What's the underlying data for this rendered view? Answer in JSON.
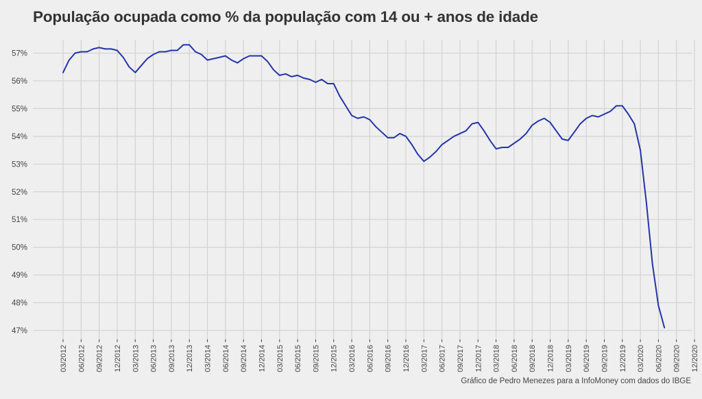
{
  "title": "População ocupada como % da população com 14 ou + anos de idade",
  "caption": "Gráfico de Pedro Menezes para a InfoMoney com dados do IBGE",
  "chart_data": {
    "type": "line",
    "title": "População ocupada como % da população com 14 ou + anos de idade",
    "xlabel": "",
    "ylabel": "",
    "ylim": [
      46.8,
      57.5
    ],
    "grid": true,
    "y_ticks": [
      47,
      48,
      49,
      50,
      51,
      52,
      53,
      54,
      55,
      56,
      57
    ],
    "y_tick_labels": [
      "47%",
      "48%",
      "49%",
      "50%",
      "51%",
      "52%",
      "53%",
      "54%",
      "55%",
      "56%",
      "57%"
    ],
    "x_ticks": [
      "03/2012",
      "06/2012",
      "09/2012",
      "12/2012",
      "03/2013",
      "06/2013",
      "09/2013",
      "12/2013",
      "03/2014",
      "06/2014",
      "09/2014",
      "12/2014",
      "03/2015",
      "06/2015",
      "09/2015",
      "12/2015",
      "03/2016",
      "06/2016",
      "09/2016",
      "12/2016",
      "03/2017",
      "06/2017",
      "09/2017",
      "12/2017",
      "03/2018",
      "06/2018",
      "09/2018",
      "12/2018",
      "03/2019",
      "06/2019",
      "09/2019",
      "12/2019",
      "03/2020",
      "06/2020",
      "09/2020",
      "12/2020"
    ],
    "line_color": "#2233aa",
    "series": [
      {
        "x": [
          "03/2012",
          "04/2012",
          "05/2012",
          "06/2012",
          "07/2012",
          "08/2012",
          "09/2012",
          "10/2012",
          "11/2012",
          "12/2012",
          "01/2013",
          "02/2013",
          "03/2013",
          "04/2013",
          "05/2013",
          "06/2013",
          "07/2013",
          "08/2013",
          "09/2013",
          "10/2013",
          "11/2013",
          "12/2013",
          "01/2014",
          "02/2014",
          "03/2014",
          "04/2014",
          "05/2014",
          "06/2014",
          "07/2014",
          "08/2014",
          "09/2014",
          "10/2014",
          "11/2014",
          "12/2014",
          "01/2015",
          "02/2015",
          "03/2015",
          "04/2015",
          "05/2015",
          "06/2015",
          "07/2015",
          "08/2015",
          "09/2015",
          "10/2015",
          "11/2015",
          "12/2015",
          "01/2016",
          "02/2016",
          "03/2016",
          "04/2016",
          "05/2016",
          "06/2016",
          "07/2016",
          "08/2016",
          "09/2016",
          "10/2016",
          "11/2016",
          "12/2016",
          "01/2017",
          "02/2017",
          "03/2017",
          "04/2017",
          "05/2017",
          "06/2017",
          "07/2017",
          "08/2017",
          "09/2017",
          "10/2017",
          "11/2017",
          "12/2017",
          "01/2018",
          "02/2018",
          "03/2018",
          "04/2018",
          "05/2018",
          "06/2018",
          "07/2018",
          "08/2018",
          "09/2018",
          "10/2018",
          "11/2018",
          "12/2018",
          "01/2019",
          "02/2019",
          "03/2019",
          "04/2019",
          "05/2019",
          "06/2019",
          "07/2019",
          "08/2019",
          "09/2019",
          "10/2019",
          "11/2019",
          "12/2019",
          "01/2020",
          "02/2020",
          "03/2020",
          "04/2020",
          "05/2020",
          "06/2020",
          "07/2020"
        ],
        "values": [
          56.3,
          56.75,
          57.0,
          57.05,
          57.05,
          57.15,
          57.2,
          57.15,
          57.15,
          57.1,
          56.85,
          56.5,
          56.3,
          56.55,
          56.8,
          56.95,
          57.05,
          57.05,
          57.1,
          57.1,
          57.3,
          57.3,
          57.05,
          56.95,
          56.75,
          56.8,
          56.85,
          56.9,
          56.75,
          56.65,
          56.8,
          56.9,
          56.9,
          56.9,
          56.7,
          56.4,
          56.2,
          56.25,
          56.15,
          56.2,
          56.1,
          56.05,
          55.95,
          56.05,
          55.9,
          55.9,
          55.45,
          55.1,
          54.75,
          54.65,
          54.7,
          54.6,
          54.35,
          54.15,
          53.95,
          53.95,
          54.1,
          54.0,
          53.7,
          53.35,
          53.1,
          53.25,
          53.45,
          53.7,
          53.85,
          54.0,
          54.1,
          54.2,
          54.45,
          54.5,
          54.2,
          53.85,
          53.55,
          53.6,
          53.6,
          53.75,
          53.9,
          54.1,
          54.4,
          54.55,
          54.65,
          54.5,
          54.2,
          53.9,
          53.85,
          54.15,
          54.45,
          54.65,
          54.75,
          54.7,
          54.8,
          54.9,
          55.1,
          55.1,
          54.8,
          54.45,
          53.5,
          51.6,
          49.4,
          47.9,
          47.1
        ]
      }
    ]
  }
}
